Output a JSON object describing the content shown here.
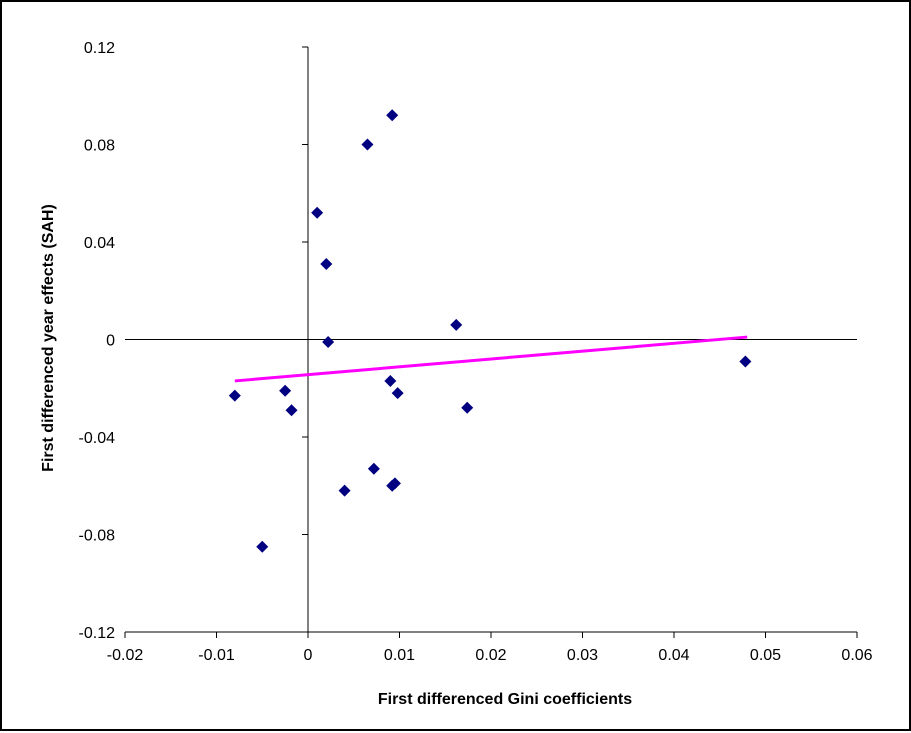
{
  "chart_data": {
    "type": "scatter",
    "title": "",
    "xlabel": "First differenced Gini coefficients",
    "ylabel": "First differenced year effects (SAH)",
    "xlim": [
      -0.02,
      0.06
    ],
    "ylim": [
      -0.12,
      0.12
    ],
    "x_ticks": [
      -0.02,
      -0.01,
      0,
      0.01,
      0.02,
      0.03,
      0.04,
      0.05,
      0.06
    ],
    "x_tick_labels": [
      "-0.02",
      "-0.01",
      "0",
      "0.01",
      "0.02",
      "0.03",
      "0.04",
      "0.05",
      "0.06"
    ],
    "y_ticks": [
      0.12,
      0.08,
      0.04,
      0,
      -0.04,
      -0.08,
      -0.12
    ],
    "y_tick_labels": [
      "0.12",
      "0.08",
      "0.04",
      "0",
      "-0.04",
      "-0.08",
      "-0.12"
    ],
    "grid": false,
    "legend": "none",
    "marker_color": "#000080",
    "trendline_color": "#FF00FF",
    "points": [
      {
        "x": 0.0092,
        "y": 0.092
      },
      {
        "x": 0.0065,
        "y": 0.08
      },
      {
        "x": 0.001,
        "y": 0.052
      },
      {
        "x": 0.002,
        "y": 0.031
      },
      {
        "x": 0.0162,
        "y": 0.006
      },
      {
        "x": 0.0022,
        "y": -0.001
      },
      {
        "x": 0.0478,
        "y": -0.009
      },
      {
        "x": 0.009,
        "y": -0.017
      },
      {
        "x": -0.0025,
        "y": -0.021
      },
      {
        "x": 0.0098,
        "y": -0.022
      },
      {
        "x": -0.008,
        "y": -0.023
      },
      {
        "x": 0.0174,
        "y": -0.028
      },
      {
        "x": -0.0018,
        "y": -0.029
      },
      {
        "x": 0.0072,
        "y": -0.053
      },
      {
        "x": 0.0095,
        "y": -0.059
      },
      {
        "x": 0.0092,
        "y": -0.06
      },
      {
        "x": 0.004,
        "y": -0.062
      },
      {
        "x": -0.005,
        "y": -0.085
      }
    ],
    "trendline": {
      "x": [
        -0.008,
        0.048
      ],
      "y": [
        -0.017,
        0.001
      ]
    }
  }
}
